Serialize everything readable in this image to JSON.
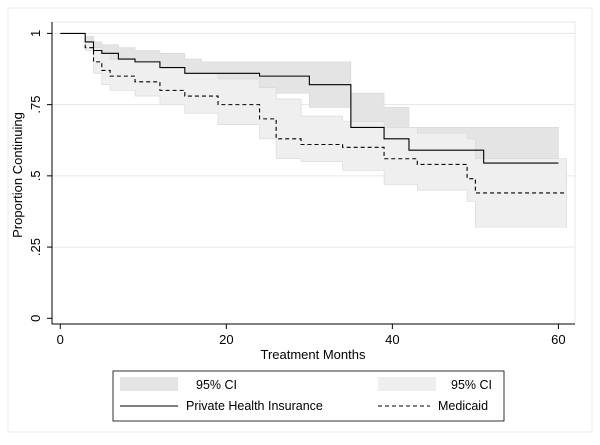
{
  "chart_data": {
    "type": "line",
    "title": "",
    "xlabel": "Treatment Months",
    "ylabel": "Proportion Continuing",
    "xlim": [
      -1,
      62
    ],
    "ylim": [
      -0.02,
      1.04
    ],
    "xticks": [
      0,
      20,
      40,
      60
    ],
    "xtick_labels": [
      "0",
      "20",
      "40",
      "60"
    ],
    "yticks": [
      0,
      0.25,
      0.5,
      0.75,
      1
    ],
    "ytick_labels": [
      "0",
      ".25",
      ".5",
      ".75",
      "1"
    ],
    "grid": "horizontal",
    "legend_position": "bottom",
    "series": [
      {
        "name": "Private Health Insurance",
        "style": "solid",
        "color": "#000000",
        "x": [
          0,
          3,
          3,
          4,
          4,
          5,
          5,
          7,
          7,
          9,
          9,
          12,
          12,
          15,
          15,
          17,
          17,
          24,
          24,
          30,
          30,
          35,
          35,
          39,
          39,
          42,
          42,
          51,
          51,
          60
        ],
        "y": [
          1,
          1,
          0.97,
          0.97,
          0.94,
          0.94,
          0.93,
          0.93,
          0.91,
          0.91,
          0.9,
          0.9,
          0.88,
          0.88,
          0.86,
          0.86,
          0.86,
          0.86,
          0.85,
          0.85,
          0.82,
          0.82,
          0.67,
          0.67,
          0.63,
          0.63,
          0.59,
          0.59,
          0.545,
          0.545
        ]
      },
      {
        "name": "Medicaid",
        "style": "dashed",
        "color": "#000000",
        "x": [
          3,
          3,
          4,
          4,
          5,
          5,
          6,
          6,
          9,
          9,
          12,
          12,
          15,
          15,
          19,
          19,
          24,
          24,
          26,
          26,
          29,
          29,
          34,
          34,
          39,
          39,
          43,
          43,
          49,
          49,
          50,
          50,
          61
        ],
        "y": [
          0.96,
          0.95,
          0.95,
          0.9,
          0.9,
          0.87,
          0.87,
          0.85,
          0.85,
          0.83,
          0.83,
          0.8,
          0.8,
          0.78,
          0.78,
          0.75,
          0.75,
          0.7,
          0.7,
          0.63,
          0.63,
          0.61,
          0.61,
          0.6,
          0.6,
          0.56,
          0.56,
          0.54,
          0.54,
          0.49,
          0.49,
          0.44,
          0.44
        ]
      }
    ],
    "bands": [
      {
        "name": "95% CI",
        "of": "Private Health Insurance",
        "fill": "#e4e4e4",
        "x": [
          3,
          4,
          5,
          7,
          9,
          12,
          15,
          17,
          24,
          30,
          35,
          39,
          42,
          51,
          60
        ],
        "upper": [
          0.99,
          0.97,
          0.96,
          0.95,
          0.94,
          0.93,
          0.91,
          0.9,
          0.9,
          0.9,
          0.79,
          0.74,
          0.67,
          0.67,
          0.67
        ],
        "lower": [
          0.96,
          0.91,
          0.9,
          0.88,
          0.87,
          0.85,
          0.83,
          0.81,
          0.79,
          0.74,
          0.57,
          0.54,
          0.49,
          0.45,
          0.45
        ]
      },
      {
        "name": "95% CI",
        "of": "Medicaid",
        "fill": "#efefef",
        "x": [
          3,
          4,
          5,
          6,
          9,
          12,
          15,
          19,
          24,
          26,
          29,
          34,
          39,
          43,
          49,
          50,
          61
        ],
        "upper": [
          0.97,
          0.95,
          0.93,
          0.91,
          0.9,
          0.88,
          0.86,
          0.84,
          0.81,
          0.77,
          0.71,
          0.69,
          0.67,
          0.65,
          0.63,
          0.56,
          0.56
        ],
        "lower": [
          0.94,
          0.86,
          0.82,
          0.8,
          0.78,
          0.75,
          0.72,
          0.68,
          0.63,
          0.56,
          0.55,
          0.52,
          0.47,
          0.45,
          0.41,
          0.32,
          0.32
        ]
      }
    ],
    "legend": [
      {
        "label": "95% CI",
        "kind": "band",
        "fill": "#e4e4e4"
      },
      {
        "label": "95% CI",
        "kind": "band",
        "fill": "#efefef"
      },
      {
        "label": "Private Health Insurance",
        "kind": "line",
        "style": "solid"
      },
      {
        "label": "Medicaid",
        "kind": "line",
        "style": "dashed"
      }
    ],
    "colors": {
      "plot_border": "#e8e8e8",
      "grid": "#e6e6e6",
      "axis": "#000000"
    }
  }
}
